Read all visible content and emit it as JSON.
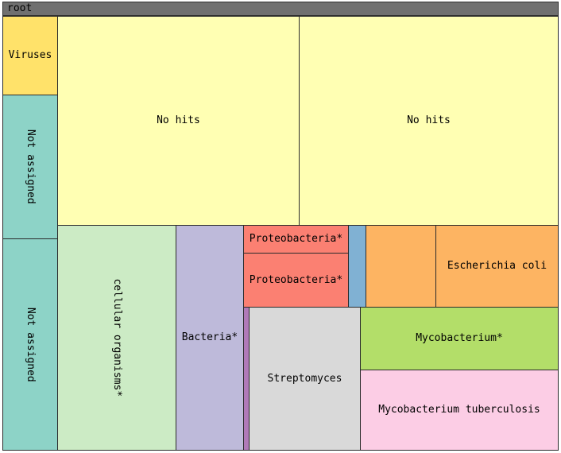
{
  "root_label": "root",
  "colors": {
    "root": "#707070",
    "virus": "#ffe26a",
    "not_assigned": "#8dd3c7",
    "no_hits": "#ffffb3",
    "cellular": "#ccebc5",
    "bacteria": "#bebada",
    "proteo": "#fb8072",
    "blue_sliver": "#80b1d3",
    "purple_sliver": "#b07ab8",
    "orange": "#fdb462",
    "mycobacterium": "#b3de69",
    "streptomyces": "#d9d9d9",
    "mtb": "#fccde5"
  },
  "nodes": {
    "viruses": "Viruses",
    "not_assigned_1": "Not assigned",
    "not_assigned_2": "Not assigned",
    "no_hits_1": "No hits",
    "no_hits_2": "No hits",
    "cellular_organisms": "cellular organisms*",
    "bacteria": "Bacteria*",
    "proteobacteria_1": "Proteobacteria*",
    "proteobacteria_2": "Proteobacteria*",
    "escherichia_coli": "Escherichia coli",
    "mycobacterium": "Mycobacterium*",
    "streptomyces": "Streptomyces",
    "mycobacterium_tuberculosis": "Mycobacterium tuberculosis"
  }
}
